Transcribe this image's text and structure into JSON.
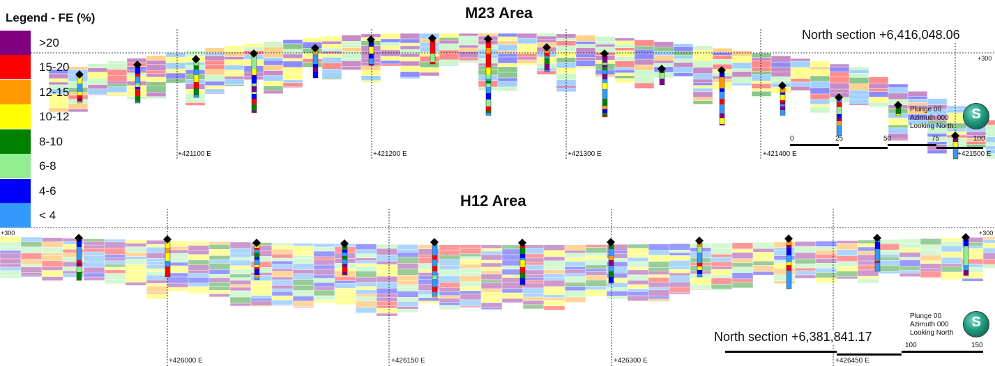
{
  "legend": {
    "title": "Legend - FE (%)",
    "classes": [
      {
        "label": ">20",
        "color": "#800080"
      },
      {
        "label": "15-20",
        "color": "#ff0000"
      },
      {
        "label": "12-15",
        "color": "#ff9900"
      },
      {
        "label": "10-12",
        "color": "#ffff00"
      },
      {
        "label": "8-10",
        "color": "#008000"
      },
      {
        "label": "6-8",
        "color": "#90ee90"
      },
      {
        "label": "4-6",
        "color": "#0000ff"
      },
      {
        "label": "< 4",
        "color": "#3399ff"
      }
    ]
  },
  "sections": [
    {
      "title": "M23 Area",
      "north_label": "North section +6,416,048.06",
      "elevation_label": "+300",
      "eastings": [
        "+421100 E",
        "+421200 E",
        "+421300 E",
        "+421400 E",
        "+421500 E"
      ],
      "orientation": [
        "Plunge 00",
        "Azimuth 000",
        "Looking North"
      ],
      "scale_ticks": [
        "0",
        "25",
        "50",
        "75",
        "100"
      ],
      "compass_letter": "S"
    },
    {
      "title": "H12 Area",
      "north_label": "North section +6,381,841.17",
      "elevation_label": "+300",
      "eastings": [
        "+426000 E",
        "+426150 E",
        "+426300 E",
        "+426450 E"
      ],
      "orientation": [
        "Plunge 00",
        "Azimuth 000",
        "Looking North"
      ],
      "scale_ticks": [
        "100",
        "150"
      ],
      "compass_letter": "S"
    }
  ],
  "colors": {
    "grid_line": "#000000",
    "cap": "#000000"
  }
}
